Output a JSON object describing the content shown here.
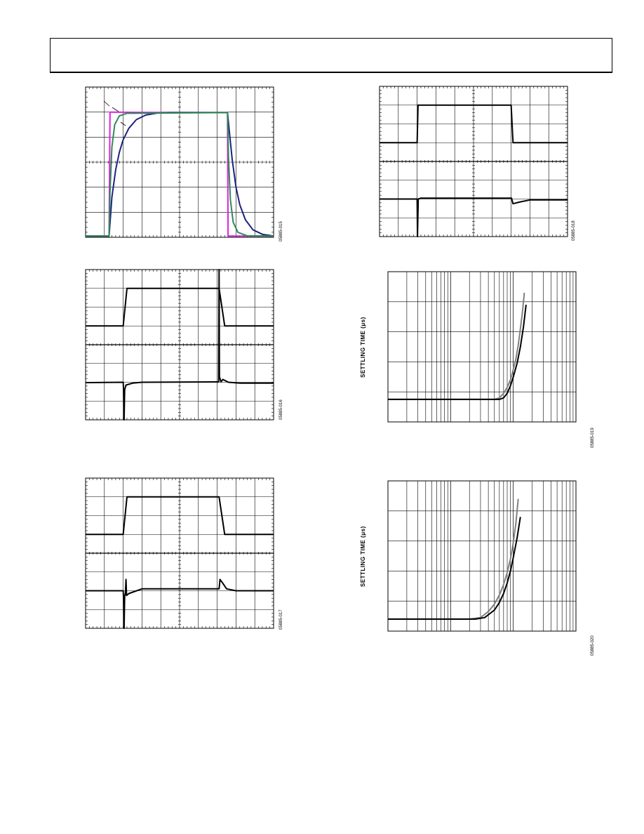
{
  "colors": {
    "magenta": "#e020e0",
    "green": "#2e8b57",
    "navy": "#1a237e",
    "black": "#000000",
    "gray": "#808080"
  },
  "chart_data": [
    {
      "id": "fig15",
      "type": "line",
      "code": "05885-015",
      "ylabel": "",
      "grid": true,
      "x": [
        0,
        10
      ],
      "ylim": [
        0,
        6
      ],
      "series": [
        {
          "color": "magenta",
          "points": [
            [
              0,
              0.05
            ],
            [
              1.25,
              0.05
            ],
            [
              1.3,
              5.0
            ],
            [
              1.4,
              5.0
            ],
            [
              4.3,
              4.98
            ],
            [
              7.55,
              4.98
            ],
            [
              7.58,
              0.05
            ],
            [
              10,
              0.05
            ]
          ]
        },
        {
          "color": "navy",
          "points": [
            [
              0,
              0.05
            ],
            [
              1.25,
              0.05
            ],
            [
              1.4,
              1.6
            ],
            [
              1.6,
              2.7
            ],
            [
              1.8,
              3.4
            ],
            [
              2.0,
              3.9
            ],
            [
              2.3,
              4.35
            ],
            [
              2.7,
              4.7
            ],
            [
              3.2,
              4.88
            ],
            [
              3.8,
              4.96
            ],
            [
              4.5,
              4.98
            ],
            [
              7.55,
              4.98
            ],
            [
              7.65,
              4.2
            ],
            [
              7.8,
              3.1
            ],
            [
              8.0,
              2.0
            ],
            [
              8.2,
              1.3
            ],
            [
              8.5,
              0.7
            ],
            [
              8.9,
              0.3
            ],
            [
              9.4,
              0.12
            ],
            [
              10,
              0.05
            ]
          ]
        },
        {
          "color": "green",
          "points": [
            [
              0,
              0.05
            ],
            [
              1.25,
              0.05
            ],
            [
              1.3,
              1.8
            ],
            [
              1.4,
              3.6
            ],
            [
              1.55,
              4.5
            ],
            [
              1.8,
              4.85
            ],
            [
              2.2,
              4.95
            ],
            [
              7.55,
              4.98
            ],
            [
              7.6,
              3.2
            ],
            [
              7.7,
              1.5
            ],
            [
              7.85,
              0.6
            ],
            [
              8.1,
              0.2
            ],
            [
              8.6,
              0.06
            ],
            [
              10,
              0.05
            ]
          ]
        }
      ]
    },
    {
      "id": "fig16",
      "type": "line",
      "code": "05885-016",
      "ylabel": "",
      "grid": true,
      "x": [
        0,
        10
      ],
      "ylim": [
        0,
        8
      ],
      "divider": 4,
      "series": [
        {
          "color": "black",
          "points": [
            [
              0,
              5.0
            ],
            [
              2.0,
              5.0
            ],
            [
              2.2,
              7.0
            ],
            [
              7.1,
              7.0
            ],
            [
              7.4,
              5.0
            ],
            [
              10,
              5.0
            ]
          ]
        },
        {
          "color": "black",
          "points": [
            [
              0,
              1.98
            ],
            [
              2.0,
              2.0
            ],
            [
              2.02,
              1.6
            ],
            [
              2.05,
              0.0
            ],
            [
              2.08,
              1.6
            ],
            [
              2.15,
              1.85
            ],
            [
              2.5,
              1.95
            ],
            [
              3.0,
              2.0
            ],
            [
              7.0,
              2.02
            ],
            [
              7.08,
              2.02
            ],
            [
              7.1,
              8.0
            ],
            [
              7.12,
              2.3
            ],
            [
              7.2,
              2.02
            ],
            [
              7.3,
              2.15
            ],
            [
              7.6,
              2.0
            ],
            [
              8.2,
              1.95
            ],
            [
              10,
              1.95
            ]
          ]
        }
      ]
    },
    {
      "id": "fig17",
      "type": "line",
      "code": "05885-017",
      "ylabel": "",
      "grid": true,
      "x": [
        0,
        10
      ],
      "ylim": [
        0,
        8
      ],
      "divider": 4,
      "series": [
        {
          "color": "black",
          "points": [
            [
              0,
              5.0
            ],
            [
              2.0,
              5.0
            ],
            [
              2.2,
              7.0
            ],
            [
              7.1,
              7.0
            ],
            [
              7.4,
              5.0
            ],
            [
              10,
              5.0
            ]
          ]
        },
        {
          "color": "black",
          "points": [
            [
              0,
              2.0
            ],
            [
              2.0,
              2.0
            ],
            [
              2.02,
              1.6
            ],
            [
              2.05,
              0.0
            ],
            [
              2.08,
              1.7
            ],
            [
              2.12,
              1.9
            ],
            [
              2.15,
              2.6
            ],
            [
              2.18,
              1.75
            ],
            [
              2.3,
              1.85
            ],
            [
              3.0,
              2.1
            ],
            [
              7.1,
              2.1
            ],
            [
              7.15,
              2.6
            ],
            [
              7.3,
              2.4
            ],
            [
              7.5,
              2.1
            ],
            [
              8.0,
              2.0
            ],
            [
              10,
              2.0
            ]
          ]
        }
      ]
    },
    {
      "id": "fig18",
      "type": "line",
      "code": "05885-018",
      "ylabel": "",
      "grid": true,
      "x": [
        0,
        10
      ],
      "ylim": [
        0,
        8
      ],
      "divider": 4,
      "series": [
        {
          "color": "black",
          "points": [
            [
              0,
              5.0
            ],
            [
              2.0,
              5.0
            ],
            [
              2.05,
              7.0
            ],
            [
              7.0,
              7.0
            ],
            [
              7.1,
              5.0
            ],
            [
              10,
              5.0
            ]
          ]
        },
        {
          "color": "black",
          "points": [
            [
              0,
              2.0
            ],
            [
              2.0,
              2.0
            ],
            [
              2.02,
              0.0
            ],
            [
              2.06,
              2.0
            ],
            [
              2.2,
              2.05
            ],
            [
              7.0,
              2.05
            ],
            [
              7.02,
              2.05
            ],
            [
              7.1,
              1.75
            ],
            [
              7.5,
              1.85
            ],
            [
              8.0,
              1.95
            ],
            [
              10,
              1.95
            ]
          ]
        }
      ]
    },
    {
      "id": "fig19",
      "type": "line",
      "code": "05885-019",
      "ylabel": "SETTLING TIME (μs)",
      "grid": true,
      "xscale": "log",
      "xdecades": [
        0,
        1,
        2,
        3
      ],
      "ylim": [
        0,
        5
      ],
      "series": [
        {
          "color": "gray",
          "points": [
            [
              1,
              0.75
            ],
            [
              50,
              0.75
            ],
            [
              60,
              0.8
            ],
            [
              70,
              0.95
            ],
            [
              80,
              1.15
            ],
            [
              90,
              1.4
            ],
            [
              100,
              1.75
            ],
            [
              110,
              2.1
            ],
            [
              120,
              2.55
            ],
            [
              130,
              3.1
            ],
            [
              140,
              3.65
            ],
            [
              150,
              4.3
            ]
          ]
        },
        {
          "color": "black",
          "points": [
            [
              1,
              0.75
            ],
            [
              60,
              0.75
            ],
            [
              70,
              0.8
            ],
            [
              80,
              0.95
            ],
            [
              90,
              1.2
            ],
            [
              100,
              1.5
            ],
            [
              115,
              1.95
            ],
            [
              130,
              2.5
            ],
            [
              145,
              3.15
            ],
            [
              160,
              3.9
            ]
          ]
        }
      ]
    },
    {
      "id": "fig20",
      "type": "line",
      "code": "05885-020",
      "ylabel": "SETTLING TIME (μs)",
      "grid": true,
      "xscale": "log",
      "xdecades": [
        0,
        1,
        2,
        3
      ],
      "ylim": [
        0,
        5
      ],
      "series": [
        {
          "color": "gray",
          "points": [
            [
              1,
              0.4
            ],
            [
              20,
              0.4
            ],
            [
              30,
              0.45
            ],
            [
              40,
              0.65
            ],
            [
              50,
              0.9
            ],
            [
              60,
              1.2
            ],
            [
              70,
              1.55
            ],
            [
              80,
              1.95
            ],
            [
              90,
              2.4
            ],
            [
              100,
              2.95
            ],
            [
              110,
              3.6
            ],
            [
              120,
              4.4
            ]
          ]
        },
        {
          "color": "black",
          "points": [
            [
              1,
              0.4
            ],
            [
              25,
              0.4
            ],
            [
              35,
              0.45
            ],
            [
              50,
              0.7
            ],
            [
              60,
              0.95
            ],
            [
              70,
              1.25
            ],
            [
              80,
              1.6
            ],
            [
              90,
              2.0
            ],
            [
              100,
              2.45
            ],
            [
              115,
              3.1
            ],
            [
              130,
              3.8
            ]
          ]
        }
      ]
    }
  ]
}
